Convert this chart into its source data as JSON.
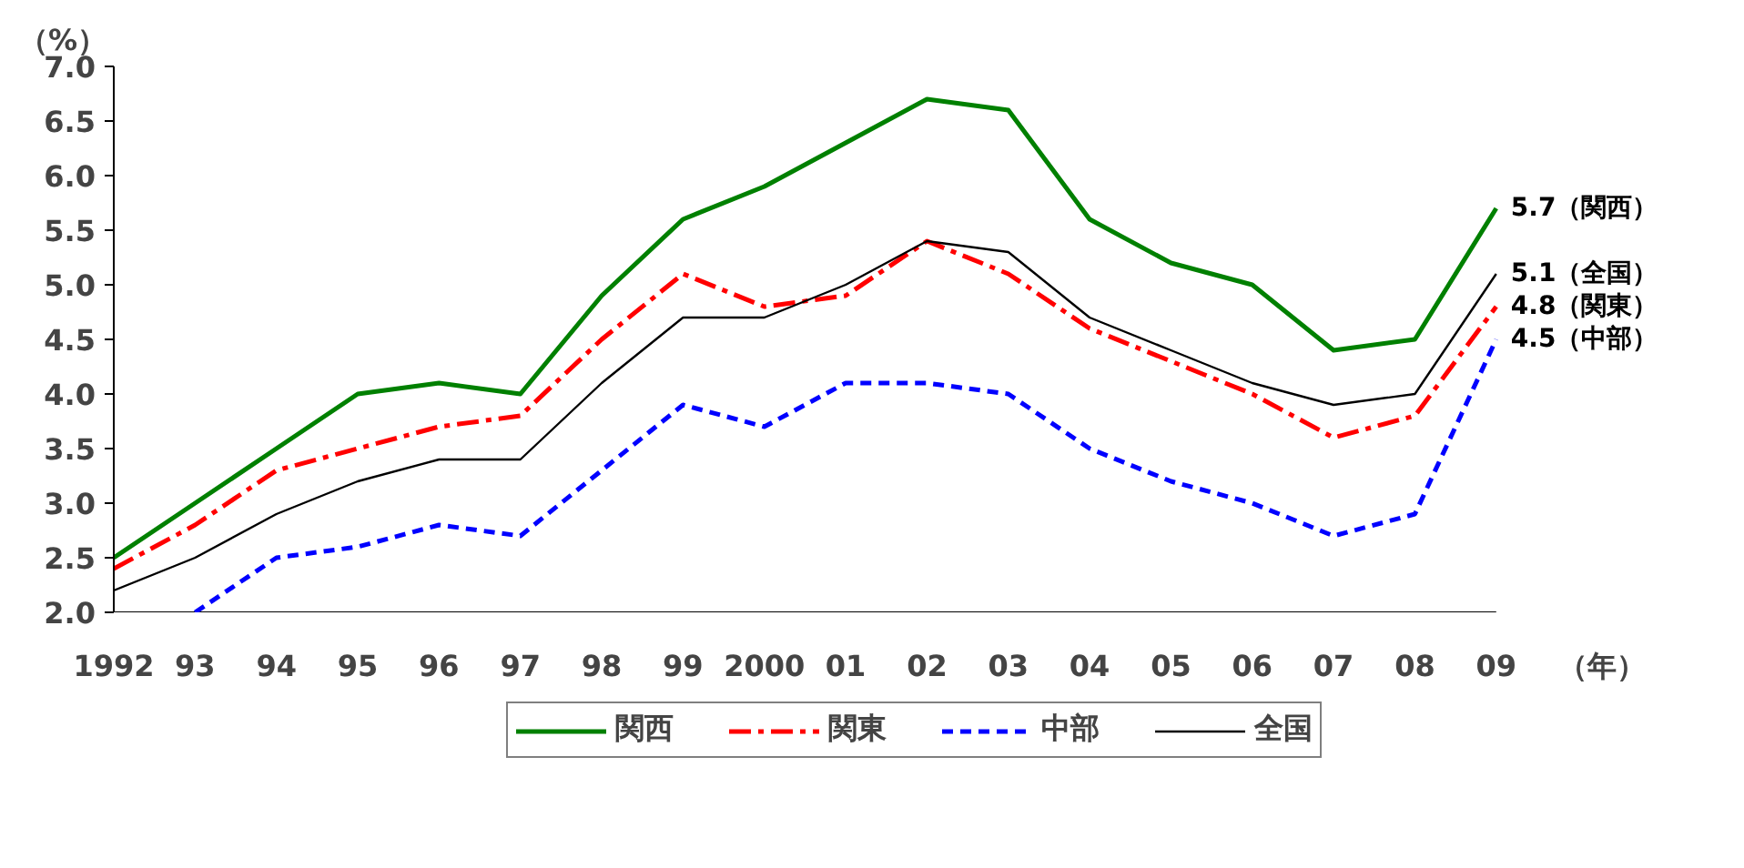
{
  "chart_data": {
    "type": "line",
    "ylabel": "（%）",
    "xlabel": "（年）",
    "categories": [
      "1992",
      "93",
      "94",
      "95",
      "96",
      "97",
      "98",
      "99",
      "2000",
      "01",
      "02",
      "03",
      "04",
      "05",
      "06",
      "07",
      "08",
      "09"
    ],
    "series": [
      {
        "name": "関西",
        "color": "#008000",
        "line_style": "solid",
        "values": [
          2.5,
          3.0,
          3.5,
          4.0,
          4.1,
          4.0,
          4.9,
          5.6,
          5.9,
          6.3,
          6.7,
          6.6,
          5.6,
          5.2,
          5.0,
          4.4,
          4.5,
          5.7
        ]
      },
      {
        "name": "関東",
        "color": "#ff0000",
        "line_style": "dashdot",
        "values": [
          2.4,
          2.8,
          3.3,
          3.5,
          3.7,
          3.8,
          4.5,
          5.1,
          4.8,
          4.9,
          5.4,
          5.1,
          4.6,
          4.3,
          4.0,
          3.6,
          3.8,
          4.8
        ]
      },
      {
        "name": "中部",
        "color": "#0000ff",
        "line_style": "dashed",
        "values": [
          null,
          2.0,
          2.5,
          2.6,
          2.8,
          2.7,
          3.3,
          3.9,
          3.7,
          4.1,
          4.1,
          4.0,
          3.5,
          3.2,
          3.0,
          2.7,
          2.9,
          4.5
        ]
      },
      {
        "name": "全国",
        "color": "#000000",
        "line_style": "solid",
        "values": [
          2.2,
          2.5,
          2.9,
          3.2,
          3.4,
          3.4,
          4.1,
          4.7,
          4.7,
          5.0,
          5.4,
          5.3,
          4.7,
          4.4,
          4.1,
          3.9,
          4.0,
          5.1
        ]
      }
    ],
    "ylim": [
      2.0,
      7.0
    ],
    "yticks": [
      {
        "value": 2,
        "label": "2.0"
      },
      2.5,
      {
        "value": 3,
        "label": "3.0"
      },
      3.5,
      {
        "value": 4,
        "label": "4.0"
      },
      4.5,
      {
        "value": 5,
        "label": "5.0"
      },
      5.5,
      {
        "value": 6,
        "label": "6.0"
      },
      6.5,
      {
        "value": 7,
        "label": "7.0"
      }
    ],
    "annotations": [
      {
        "text": "5.7（関西）",
        "x": "09",
        "y": 5.7
      },
      {
        "text": "5.1（全国）",
        "x": "09",
        "y": 5.1
      },
      {
        "text": "4.8（関東）",
        "x": "09",
        "y": 4.8
      },
      {
        "text": "4.5（中部）",
        "x": "09",
        "y": 4.5
      }
    ],
    "legend": "bottom",
    "grid": false,
    "marker": "none"
  }
}
